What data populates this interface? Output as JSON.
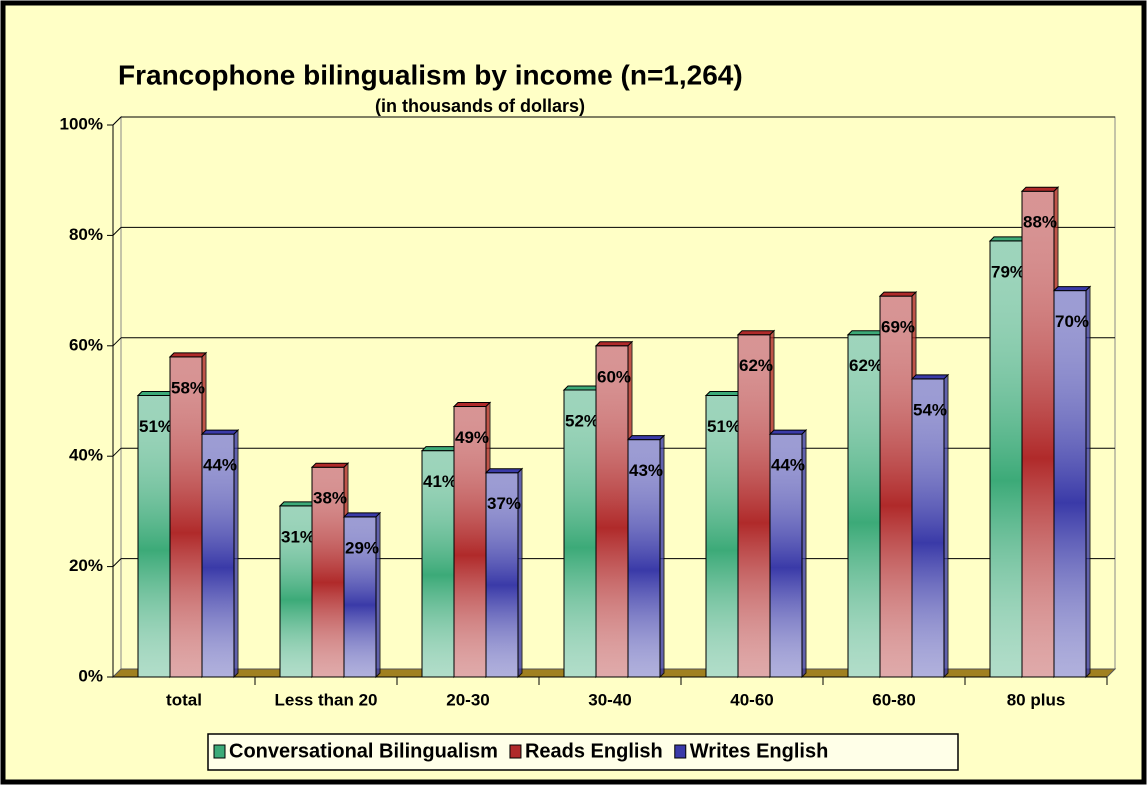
{
  "chart_data": {
    "type": "bar",
    "title": "Francophone bilingualism by income (n=1,264)",
    "subtitle": "(in thousands of dollars)",
    "categories": [
      "total",
      "Less than 20",
      "20-30",
      "30-40",
      "40-60",
      "60-80",
      "80 plus"
    ],
    "series": [
      {
        "name": "Conversational Bilingualism",
        "color": "#3caa78",
        "values": [
          51,
          31,
          41,
          52,
          51,
          62,
          79
        ],
        "value_labels": [
          "51%",
          "31%",
          "41%",
          "52%",
          "51%",
          "62%",
          "79%"
        ]
      },
      {
        "name": "Reads English",
        "color": "#b02a2a",
        "values": [
          58,
          38,
          49,
          60,
          62,
          69,
          88
        ],
        "value_labels": [
          "58%",
          "38%",
          "49%",
          "60%",
          "62%",
          "69%",
          "88%"
        ]
      },
      {
        "name": "Writes English",
        "color": "#3a3aa8",
        "values": [
          44,
          29,
          37,
          43,
          44,
          54,
          70
        ],
        "value_labels": [
          "44%",
          "29%",
          "37%",
          "43%",
          "44%",
          "54%",
          "70%"
        ]
      }
    ],
    "ylim": [
      0,
      100
    ],
    "yticks": [
      {
        "value": 0,
        "label": "0%"
      },
      {
        "value": 20,
        "label": "20%"
      },
      {
        "value": 40,
        "label": "40%"
      },
      {
        "value": 60,
        "label": "60%"
      },
      {
        "value": 80,
        "label": "80%"
      },
      {
        "value": 100,
        "label": "100%"
      }
    ],
    "grid": true,
    "legend": "bottom"
  }
}
